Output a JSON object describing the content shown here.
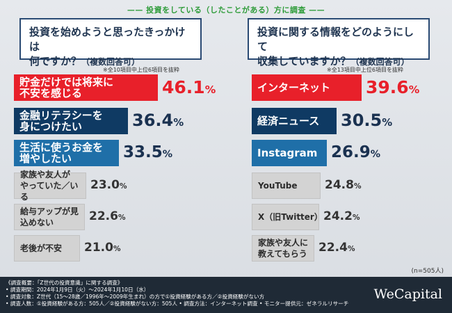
{
  "header": {
    "title": "—— 投資をしている（したことがある）方に調査 ——"
  },
  "chart_data": [
    {
      "type": "bar",
      "title": "投資を始めようと思ったきっかけは何ですか？",
      "title_line1": "投資を始めようと思ったきっかけは",
      "title_line2": "何ですか？",
      "subtitle": "（複数回答可）",
      "note": "※全10項目中上位6項目を抜粋",
      "categories": [
        "貯金だけでは将来に不安を感じる",
        "金融リテラシーを身につけたい",
        "生活に使うお金を増やしたい",
        "家族や友人がやっていた／いる",
        "給与アップが見込めない",
        "老後が不安"
      ],
      "label_lines": [
        [
          "貯金だけでは将来に",
          "不安を感じる"
        ],
        [
          "金融リテラシーを",
          "身につけたい"
        ],
        [
          "生活に使うお金を",
          "増やしたい"
        ],
        [
          "家族や友人が",
          "やっていた／いる"
        ],
        [
          "給与アップが見込めない"
        ],
        [
          "老後が不安"
        ]
      ],
      "values": [
        46.1,
        36.4,
        33.5,
        23.0,
        22.6,
        21.0
      ],
      "value_labels": [
        [
          "46.1",
          "%"
        ],
        [
          "36.4",
          "%"
        ],
        [
          "33.5",
          "%"
        ],
        [
          "23.0",
          "%"
        ],
        [
          "22.6",
          "%"
        ],
        [
          "21.0",
          "%"
        ]
      ],
      "colors": [
        "#e8202a",
        "#0f3a63",
        "#1f6fa8",
        "#d3d3d3",
        "#d3d3d3",
        "#d3d3d3"
      ]
    },
    {
      "type": "bar",
      "title": "投資に関する情報をどのようにして収集していますか？",
      "title_line1": "投資に関する情報をどのようにして",
      "title_line2": "収集していますか？",
      "subtitle": "（複数回答可）",
      "note": "※全13項目中上位6項目を抜粋",
      "categories": [
        "インターネット",
        "経済ニュース",
        "Instagram",
        "YouTube",
        "X（旧Twitter）",
        "家族や友人に教えてもらう"
      ],
      "label_lines": [
        [
          "インターネット"
        ],
        [
          "経済ニュース"
        ],
        [
          "Instagram"
        ],
        [
          "YouTube"
        ],
        [
          "X（旧Twitter）"
        ],
        [
          "家族や友人に教えてもらう"
        ]
      ],
      "values": [
        39.6,
        30.5,
        26.9,
        24.8,
        24.2,
        22.4
      ],
      "value_labels": [
        [
          "39.6",
          "%"
        ],
        [
          "30.5",
          "%"
        ],
        [
          "26.9",
          "%"
        ],
        [
          "24.8",
          "%"
        ],
        [
          "24.2",
          "%"
        ],
        [
          "22.4",
          "%"
        ]
      ],
      "colors": [
        "#e8202a",
        "#0f3a63",
        "#1f6fa8",
        "#d3d3d3",
        "#d3d3d3",
        "#d3d3d3"
      ]
    }
  ],
  "n_note": "(n=505人)",
  "footer": {
    "lines": [
      "《調査概要：「Z世代の投資意識」に関する調査》",
      "• 調査期間：2024年1月9日（火）〜2024年1月10日（水）",
      "• 調査対象：Z世代（15〜28歳／1996年〜2009年生まれ）の方で①投資経験がある方／②投資経験がない方",
      "• 調査人数：①投資経験がある方：505人／②投資経験がない方：505人 • 調査方法：インターネット調査 • モニター提供元：ゼネラルリサーチ"
    ],
    "logo": "WeCapital"
  }
}
